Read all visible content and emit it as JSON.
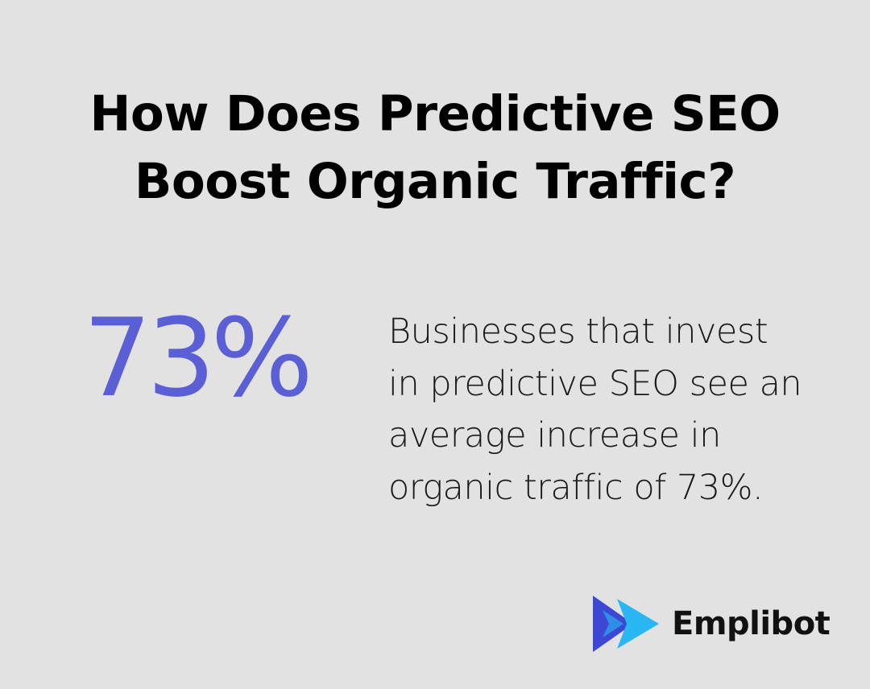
{
  "header": {
    "title_line1": "How Does Predictive SEO",
    "title_line2": "Boost Organic Traffic?"
  },
  "stat": {
    "value": "73%",
    "description_lines": [
      "Businesses that invest",
      "in predictive SEO see an",
      "average increase in",
      "organic traffic of 73%."
    ]
  },
  "brand": {
    "name": "Emplibot",
    "icon": "play-chevron-logo-icon"
  },
  "colors": {
    "background": "#e1e2e1",
    "accent": "#5b5fd6",
    "logo_dark": "#3c48d4",
    "logo_light": "#29b6f2",
    "text": "#000000"
  }
}
